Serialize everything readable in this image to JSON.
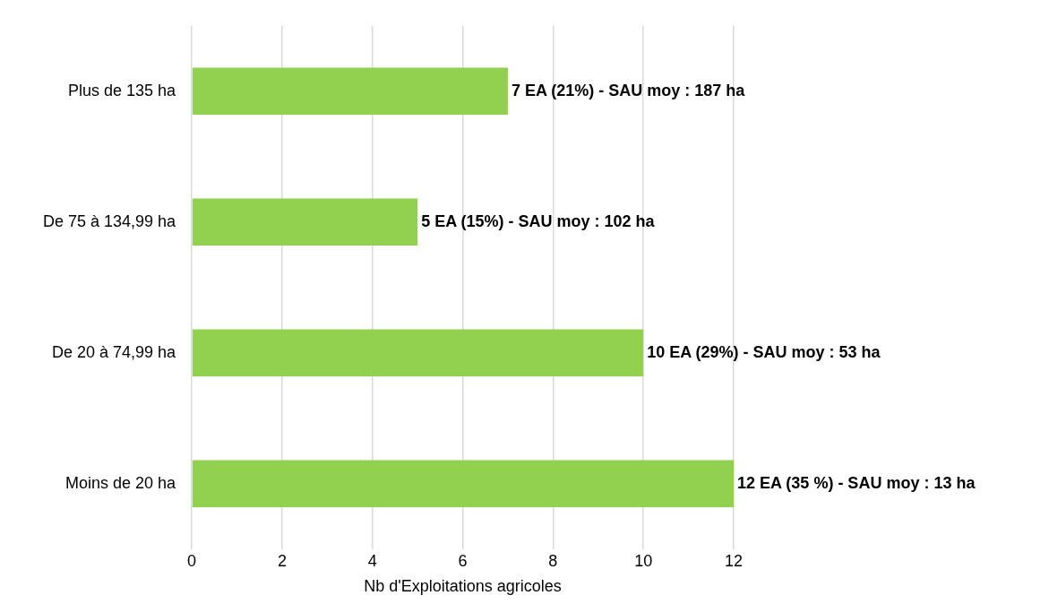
{
  "chart_data": {
    "type": "bar",
    "orientation": "horizontal",
    "xlabel": "Nb d'Exploitations agricoles",
    "categories": [
      "Plus de 135 ha",
      "De 75 à 134,99 ha",
      "De 20 à 74,99 ha",
      "Moins de 20 ha"
    ],
    "values": [
      7,
      5,
      10,
      12
    ],
    "color": "#92d050",
    "value_labels": [
      "7 EA (21%) - SAU moy : 187 ha",
      "5 EA (15%) - SAU moy : 102 ha",
      "10 EA (29%) - SAU moy : 53 ha",
      "12 EA (35 %) - SAU moy : 13 ha"
    ],
    "xlim": [
      0,
      12
    ],
    "xticks": [
      0,
      2,
      4,
      6,
      8,
      10,
      12
    ],
    "grid": "x",
    "legend": false
  }
}
